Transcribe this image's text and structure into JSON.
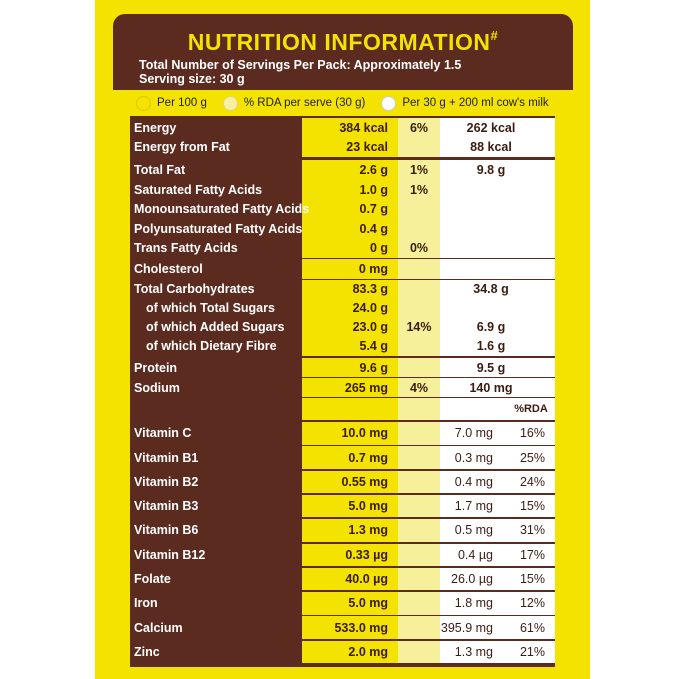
{
  "header": {
    "title": "NUTRITION INFORMATION",
    "title_mark": "#",
    "servings": "Total Number of Servings Per Pack: Approximately 1.5",
    "serving_size": "Serving size: 30 g"
  },
  "legend": [
    "Per 100 g",
    "% RDA per serve (30 g)",
    "Per 30 g + 200 ml cow's milk"
  ],
  "table": {
    "rows": [
      [
        "Energy",
        "384 kcal",
        "6%",
        "262 kcal",
        null
      ],
      [
        "Energy from Fat",
        "23 kcal",
        null,
        "88 kcal",
        null
      ],
      [
        "Total Fat",
        "2.6 g",
        "1%",
        "9.8 g",
        null
      ],
      [
        "Saturated Fatty Acids",
        "1.0 g",
        "1%",
        null,
        null
      ],
      [
        "Monounsaturated Fatty Acids",
        "0.7 g",
        null,
        null,
        null
      ],
      [
        "Polyunsaturated Fatty Acids",
        "0.4 g",
        null,
        null,
        null
      ],
      [
        "Trans Fatty Acids",
        "0 g",
        "0%",
        null,
        null
      ],
      [
        "Cholesterol",
        "0 mg",
        null,
        null,
        null
      ],
      [
        "Total Carbohydrates",
        "83.3 g",
        null,
        "34.8 g",
        null
      ],
      [
        "of which Total Sugars",
        "24.0 g",
        null,
        null,
        null
      ],
      [
        "of which Added Sugars",
        "23.0 g",
        "14%",
        "6.9 g",
        null
      ],
      [
        "of which Dietary Fibre",
        "5.4 g",
        null,
        "1.6 g",
        null
      ],
      [
        "Protein",
        "9.6 g",
        null,
        "9.5 g",
        null
      ],
      [
        "Sodium",
        "265 mg",
        "4%",
        "140 mg",
        null
      ],
      [
        null,
        null,
        null,
        null,
        "%RDA"
      ],
      [
        "Vitamin C",
        "10.0 mg",
        null,
        "7.0 mg",
        "16%"
      ],
      [
        "Vitamin B1",
        "0.7 mg",
        null,
        "0.3 mg",
        "25%"
      ],
      [
        "Vitamin B2",
        "0.55 mg",
        null,
        "0.4 mg",
        "24%"
      ],
      [
        "Vitamin B3",
        "5.0 mg",
        null,
        "1.7 mg",
        "15%"
      ],
      [
        "Vitamin  B6",
        "1.3 mg",
        null,
        "0.5 mg",
        "31%"
      ],
      [
        "Vitamin  B12",
        "0.33 µg",
        null,
        "0.4 µg",
        "17%"
      ],
      [
        "Folate",
        "40.0 µg",
        null,
        "26.0 µg",
        "15%"
      ],
      [
        "Iron",
        "5.0 mg",
        null,
        "1.8 mg",
        "12%"
      ],
      [
        "Calcium",
        "533.0 mg",
        null,
        "395.9 mg",
        "61%"
      ],
      [
        "Zinc",
        "2.0 mg",
        null,
        "1.3 mg",
        "21%"
      ]
    ]
  }
}
